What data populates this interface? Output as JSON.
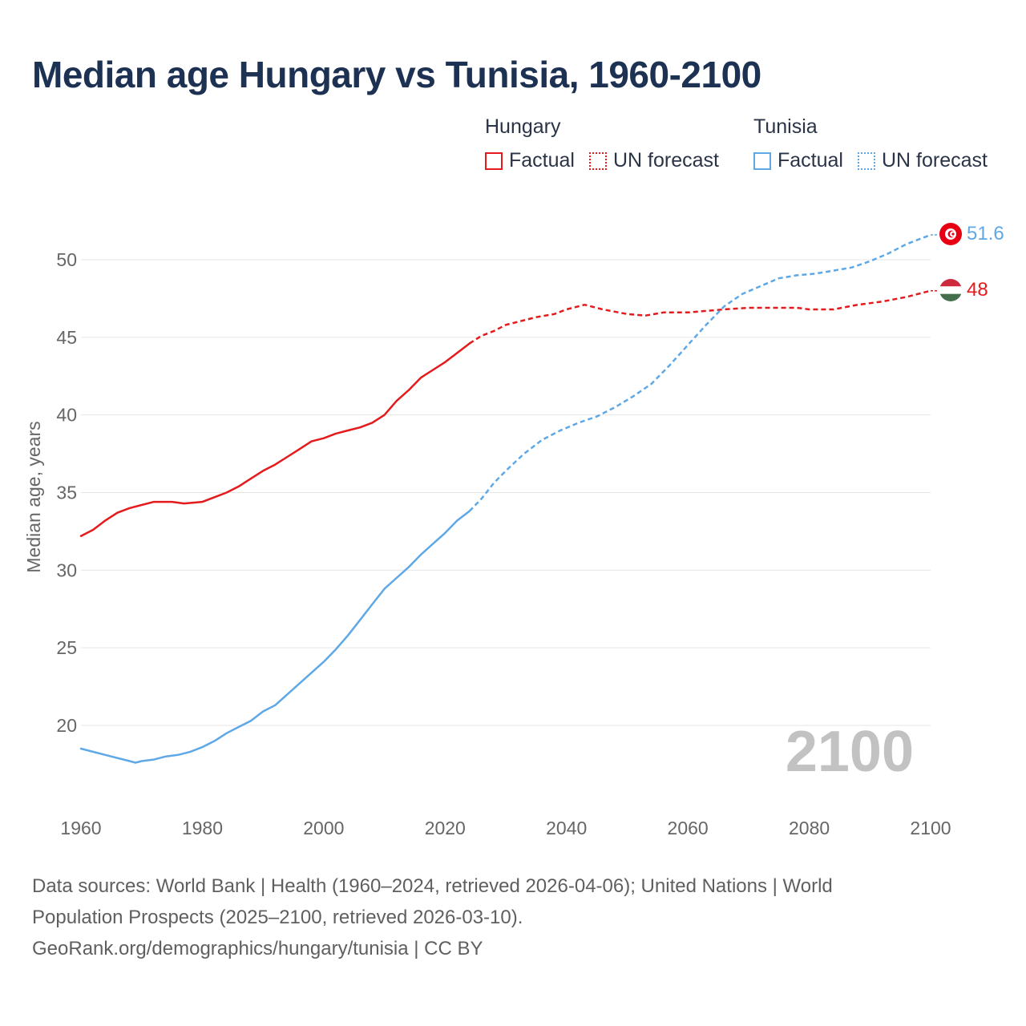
{
  "title": "Median age Hungary vs Tunisia, 1960-2100",
  "legend": {
    "hungary": {
      "name": "Hungary",
      "factual": "Factual",
      "forecast": "UN forecast",
      "color": "#e41a1c"
    },
    "tunisia": {
      "name": "Tunisia",
      "factual": "Factual",
      "forecast": "UN forecast",
      "color": "#5fa8e6"
    }
  },
  "chart_data": {
    "type": "line",
    "ylabel": "Median age, years",
    "xlabel": "",
    "xlim": [
      1960,
      2100
    ],
    "ylim": [
      15,
      54
    ],
    "xticks": [
      1960,
      1980,
      2000,
      2020,
      2040,
      2060,
      2080,
      2100
    ],
    "yticks": [
      20,
      25,
      30,
      35,
      40,
      45,
      50
    ],
    "grid": true,
    "year_watermark": "2100",
    "factual_end": 2024,
    "series": [
      {
        "name": "Hungary",
        "color": "#e41a1c",
        "end_label": "48",
        "x": [
          1960,
          1962,
          1964,
          1966,
          1968,
          1970,
          1972,
          1975,
          1977,
          1980,
          1982,
          1984,
          1986,
          1988,
          1990,
          1992,
          1994,
          1996,
          1998,
          2000,
          2002,
          2004,
          2006,
          2008,
          2010,
          2012,
          2014,
          2016,
          2018,
          2020,
          2022,
          2024,
          2026,
          2028,
          2030,
          2032,
          2035,
          2038,
          2040,
          2043,
          2046,
          2050,
          2053,
          2056,
          2060,
          2063,
          2066,
          2070,
          2074,
          2078,
          2080,
          2084,
          2088,
          2092,
          2096,
          2100
        ],
        "values": [
          32.2,
          32.6,
          33.2,
          33.7,
          34.0,
          34.2,
          34.4,
          34.4,
          34.3,
          34.4,
          34.7,
          35.0,
          35.4,
          35.9,
          36.4,
          36.8,
          37.3,
          37.8,
          38.3,
          38.5,
          38.8,
          39.0,
          39.2,
          39.5,
          40.0,
          40.9,
          41.6,
          42.4,
          42.9,
          43.4,
          44.0,
          44.6,
          45.1,
          45.4,
          45.8,
          46.0,
          46.3,
          46.5,
          46.8,
          47.1,
          46.8,
          46.5,
          46.4,
          46.6,
          46.6,
          46.7,
          46.8,
          46.9,
          46.9,
          46.9,
          46.8,
          46.8,
          47.1,
          47.3,
          47.6,
          48.0
        ]
      },
      {
        "name": "Tunisia",
        "color": "#5fa8e6",
        "end_label": "51.6",
        "x": [
          1960,
          1964,
          1968,
          1969,
          1970,
          1972,
          1974,
          1976,
          1978,
          1980,
          1982,
          1984,
          1986,
          1988,
          1990,
          1992,
          1994,
          1996,
          1998,
          2000,
          2002,
          2004,
          2006,
          2008,
          2010,
          2012,
          2014,
          2016,
          2018,
          2020,
          2022,
          2024,
          2026,
          2028,
          2030,
          2033,
          2036,
          2039,
          2042,
          2045,
          2048,
          2051,
          2054,
          2057,
          2060,
          2063,
          2066,
          2069,
          2072,
          2075,
          2078,
          2081,
          2084,
          2087,
          2090,
          2093,
          2096,
          2100
        ],
        "values": [
          18.5,
          18.1,
          17.7,
          17.6,
          17.7,
          17.8,
          18.0,
          18.1,
          18.3,
          18.6,
          19.0,
          19.5,
          19.9,
          20.3,
          20.9,
          21.3,
          22.0,
          22.7,
          23.4,
          24.1,
          24.9,
          25.8,
          26.8,
          27.8,
          28.8,
          29.5,
          30.2,
          31.0,
          31.7,
          32.4,
          33.2,
          33.8,
          34.6,
          35.6,
          36.4,
          37.5,
          38.4,
          39.0,
          39.5,
          39.9,
          40.5,
          41.2,
          42.0,
          43.2,
          44.5,
          45.8,
          47.0,
          47.8,
          48.3,
          48.8,
          49.0,
          49.1,
          49.3,
          49.5,
          49.9,
          50.4,
          51.0,
          51.6
        ]
      }
    ]
  },
  "footer": {
    "line1": "Data sources: World Bank | Health (1960–2024, retrieved 2026-04-06); United Nations | World",
    "line2": "Population Prospects (2025–2100, retrieved 2026-03-10).",
    "line3": "GeoRank.org/demographics/hungary/tunisia | CC BY"
  }
}
